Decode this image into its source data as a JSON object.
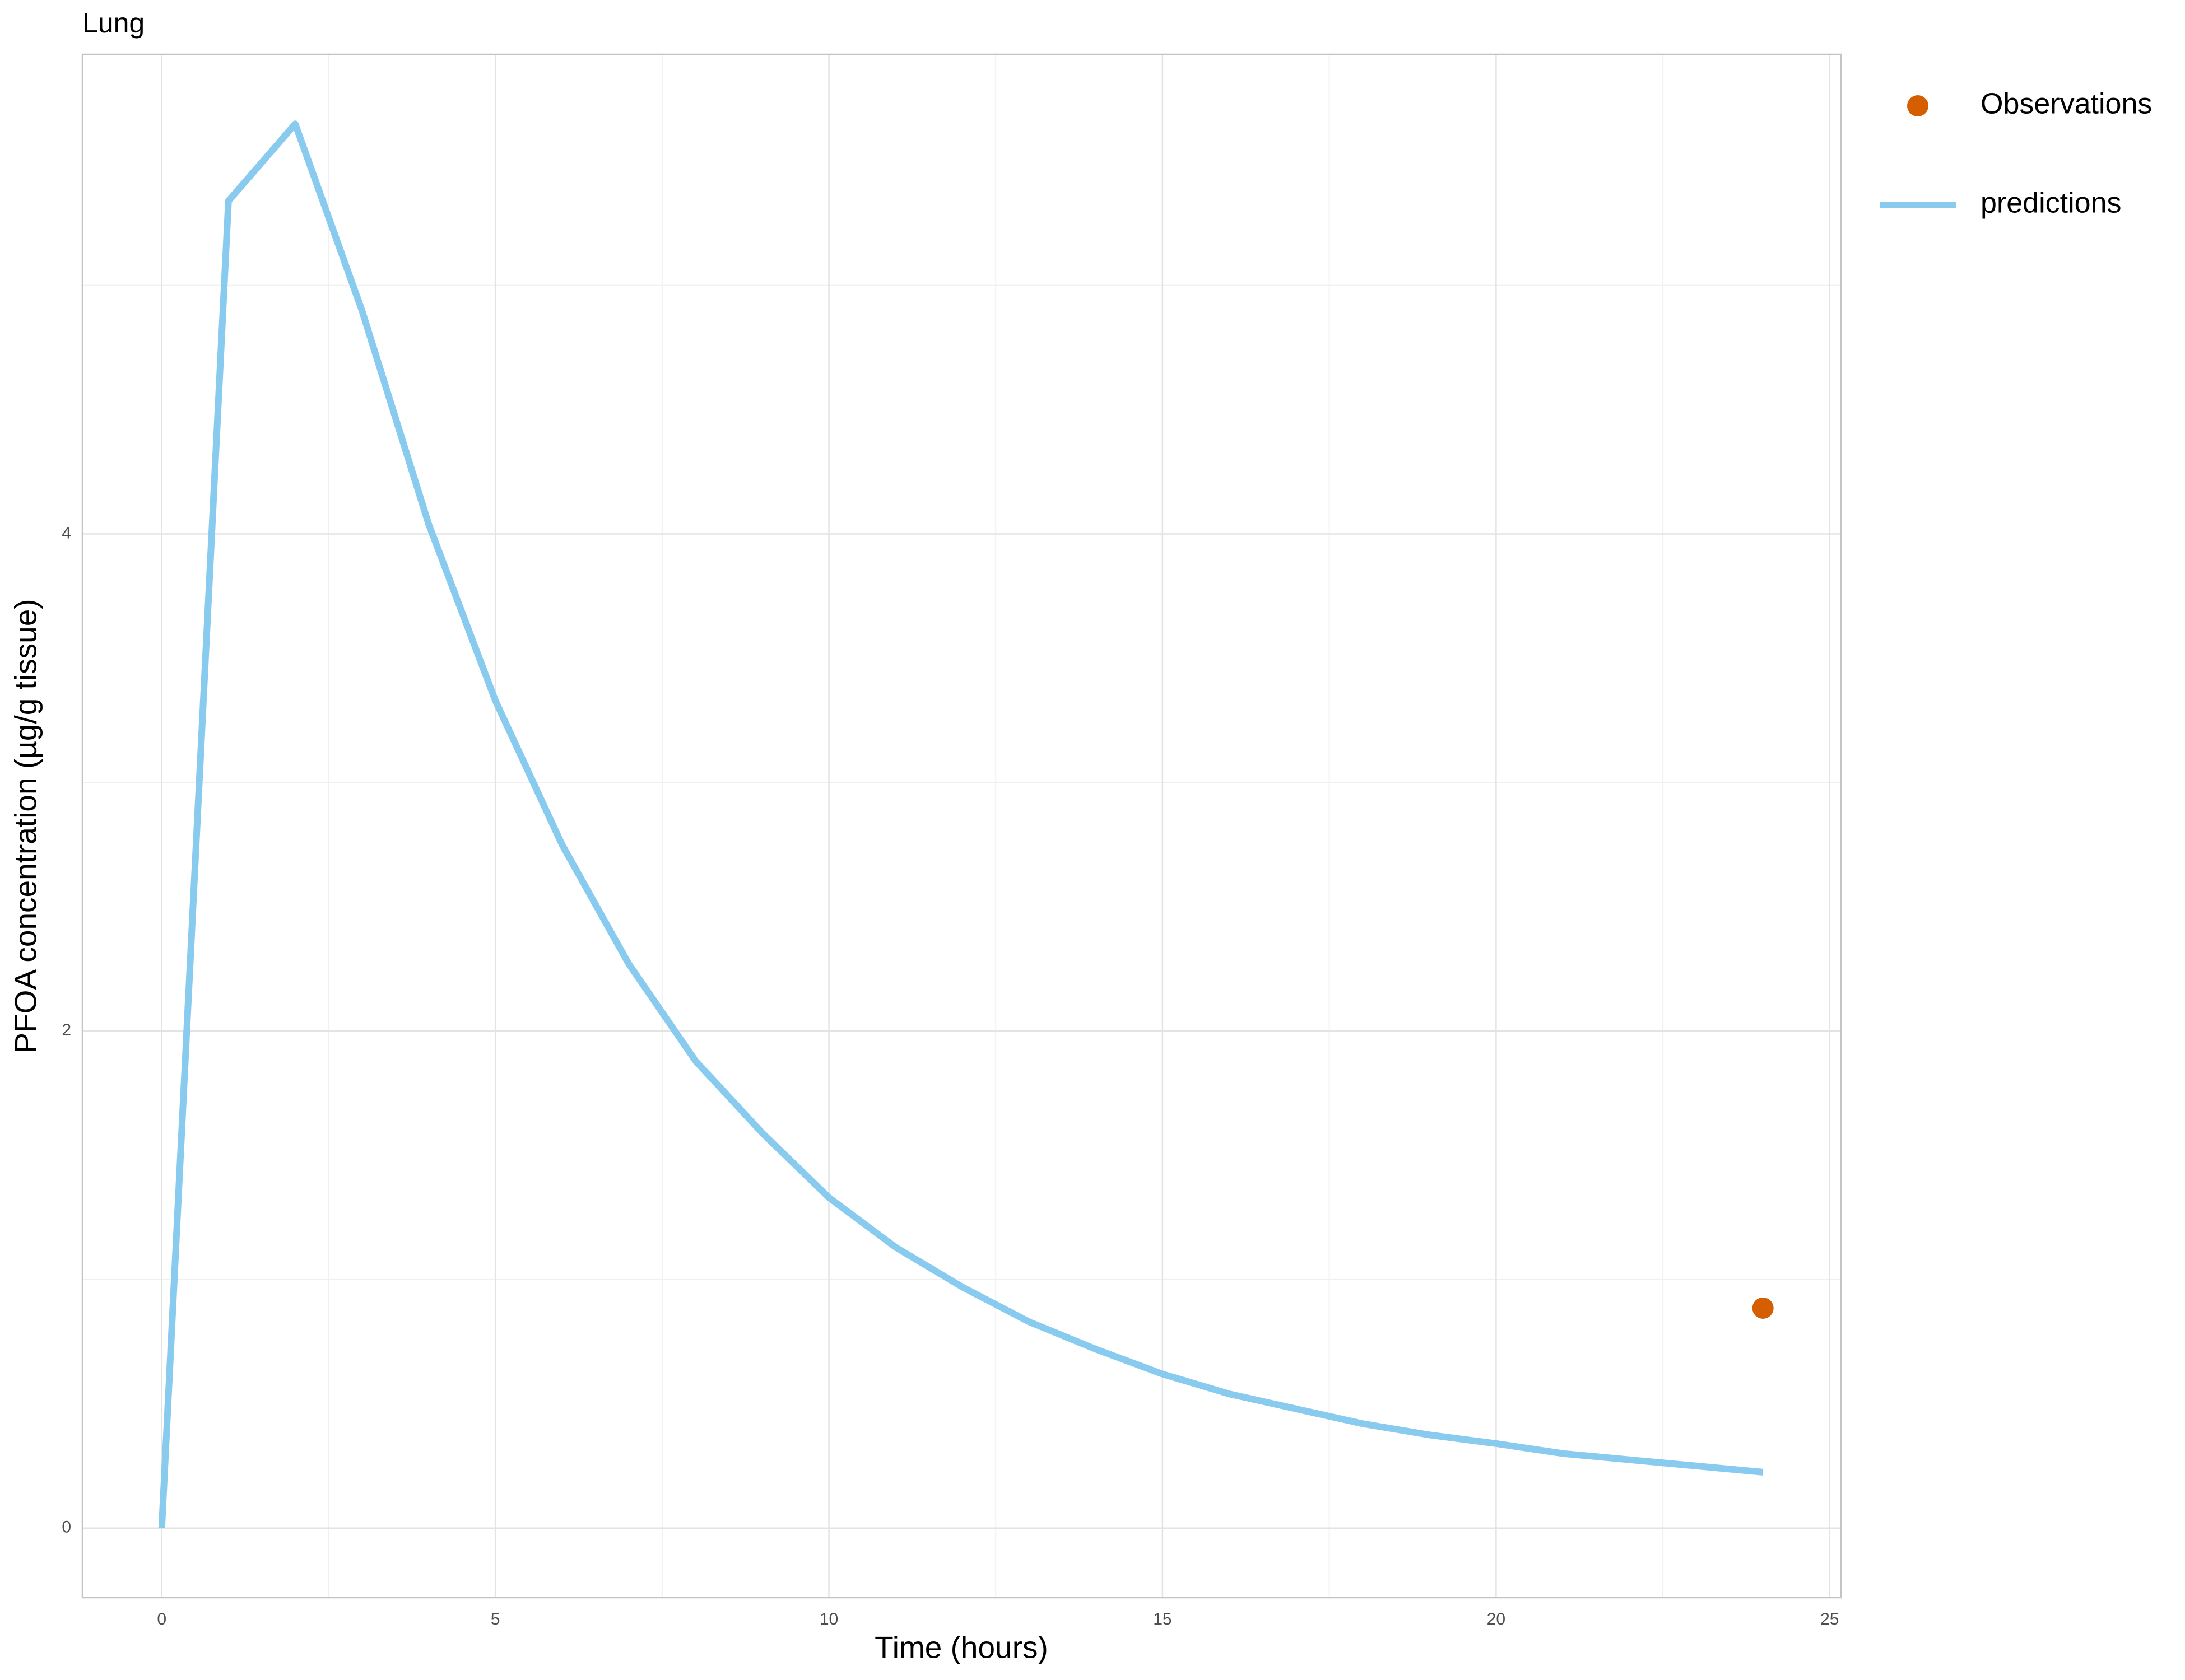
{
  "chart_data": {
    "type": "line",
    "title": "Lung",
    "xlabel": "Time (hours)",
    "ylabel": "PFOA concentration (µg/g tissue)",
    "xlim": [
      -1.19,
      25.17
    ],
    "ylim": [
      -0.28,
      5.93
    ],
    "xticks": [
      0,
      5,
      10,
      15,
      20,
      25
    ],
    "yticks": [
      0,
      2,
      4
    ],
    "grid": true,
    "legend": "right",
    "series": [
      {
        "name": "Observations",
        "type": "scatter",
        "color": "#d55e00",
        "x": [
          24
        ],
        "values": [
          0.885
        ]
      },
      {
        "name": "predictions",
        "type": "line",
        "color": "#89cbee",
        "x": [
          0,
          1,
          2,
          3,
          4,
          5,
          6,
          7,
          8,
          9,
          10,
          11,
          12,
          13,
          14,
          15,
          16,
          17,
          18,
          19,
          20,
          21,
          22,
          23,
          24
        ],
        "values": [
          0,
          5.34,
          5.65,
          4.9,
          4.04,
          3.33,
          2.75,
          2.27,
          1.88,
          1.59,
          1.33,
          1.13,
          0.97,
          0.83,
          0.72,
          0.62,
          0.54,
          0.48,
          0.42,
          0.375,
          0.34,
          0.3,
          0.275,
          0.25,
          0.225
        ]
      }
    ]
  }
}
